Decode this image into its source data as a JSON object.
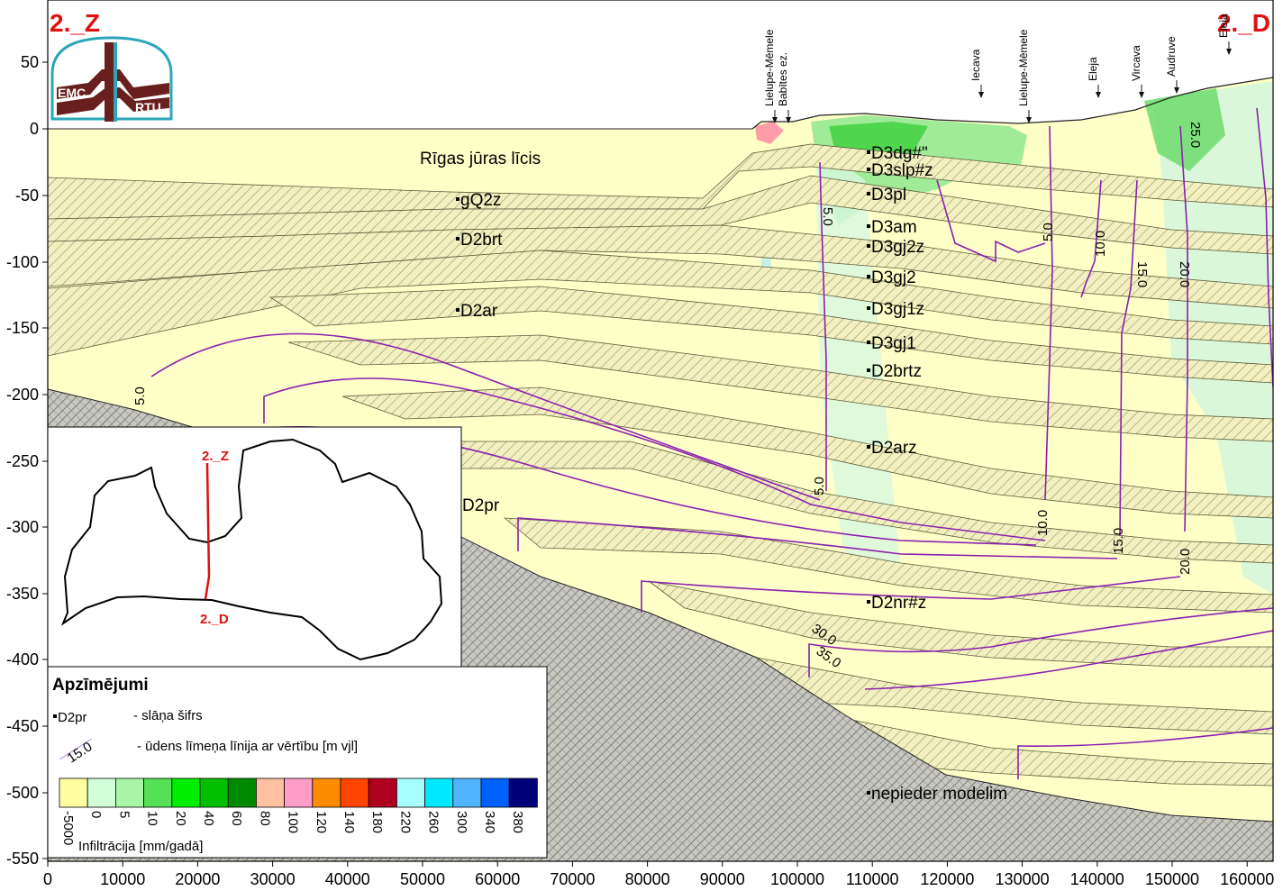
{
  "corner_labels": {
    "left": "2._Z",
    "right": "2._D"
  },
  "logo": {
    "top_text": "EMC",
    "bottom_text": "RTU"
  },
  "axes": {
    "x_ticks": [
      "0",
      "10000",
      "20000",
      "30000",
      "40000",
      "50000",
      "60000",
      "70000",
      "80000",
      "90000",
      "100000",
      "110000",
      "120000",
      "130000",
      "140000",
      "150000",
      "160000"
    ],
    "y_ticks": [
      "50",
      "0",
      "-50",
      "-100",
      "-150",
      "-200",
      "-250",
      "-300",
      "-350",
      "-400",
      "-450",
      "-500",
      "-550"
    ],
    "x_range": [
      0,
      163500
    ],
    "y_range": [
      -555,
      92
    ]
  },
  "sea_label": "Rīgas jūras līcis",
  "layer_codes": [
    "gQ2z",
    "D2brt",
    "D2ar",
    "D3dg#\"",
    "D3slp#z",
    "D3pl",
    "D3am",
    "D3gj2z",
    "D3gj2",
    "D3gj1z",
    "D3gj1",
    "D2brtz",
    "D2arz",
    "D2pr",
    "D2nr#z",
    "nepieder modelim"
  ],
  "rivers": [
    "Lielupe-Mēmele",
    "Babītes ez.",
    "Iecava",
    "Lielupe-Mēmele",
    "Eleja",
    "Vircava",
    "Audruve",
    "Eleja"
  ],
  "contour_labels": [
    "5.0",
    "5.0",
    "5.0",
    "5.0",
    "10.0",
    "10.0",
    "15.0",
    "15.0",
    "20.0",
    "20.0",
    "25.0",
    "30.0",
    "35.0"
  ],
  "inset": {
    "top_label": "2._Z",
    "bottom_label": "2._D"
  },
  "legend": {
    "title": "Apzīmējumi",
    "code_sample": "D2pr",
    "code_desc": "- slāņa šifrs",
    "line_sample": "15.0",
    "line_desc": "- ūdens līmeņa līnija ar vērtību [m vjl]",
    "scale_values": [
      "-5000",
      "0",
      "5",
      "10",
      "20",
      "40",
      "60",
      "80",
      "100",
      "120",
      "140",
      "180",
      "220",
      "260",
      "300",
      "340",
      "380"
    ],
    "scale_colors": [
      "#FFFFA0",
      "#D0FFD8",
      "#A8F5A8",
      "#55E055",
      "#00EE00",
      "#00C000",
      "#008A00",
      "#FFC0A0",
      "#FF9CC8",
      "#FF8C00",
      "#FF4500",
      "#B00020",
      "#A8FFFF",
      "#00E8FF",
      "#50B4FF",
      "#0060FF",
      "#000078"
    ],
    "scale_title": "Infiltrācija [mm/gadā]"
  },
  "colors": {
    "layer_fill": "#FFFFC8",
    "hatch_band": "#EFEDB8",
    "contour": "#8B1FB0",
    "title_red": "#E01010"
  }
}
